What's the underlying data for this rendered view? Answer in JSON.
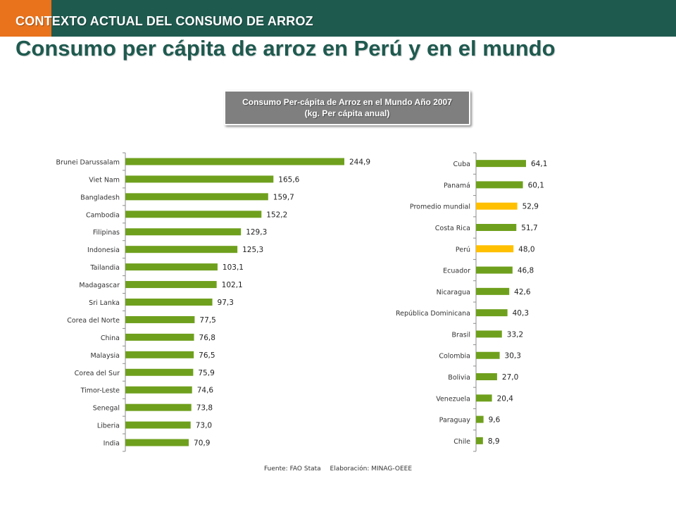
{
  "header": {
    "section_title": "CONTEXTO ACTUAL DEL CONSUMO DE ARROZ",
    "main_title": "Consumo per cápita de arroz en Perú y en el mundo"
  },
  "chart_title": {
    "line1": "Consumo Per-cápita de Arroz en el Mundo Año 2007",
    "line2": "(kg. Per cápita anual)"
  },
  "footer": {
    "source": "Fuente: FAO Stata",
    "elaboration": "Elaboración: MINAG-OEEE"
  },
  "colors": {
    "bar_default": "#6fa01d",
    "bar_highlight": "#ffc000",
    "header_bg": "#1f5a4f",
    "header_accent": "#e8731c"
  },
  "chart_data": [
    {
      "type": "bar",
      "orientation": "horizontal",
      "categories": [
        "Brunei Darussalam",
        "Viet Nam",
        "Bangladesh",
        "Cambodia",
        "Filipinas",
        "Indonesia",
        "Tailandia",
        "Madagascar",
        "Sri Lanka",
        "Corea del Norte",
        "China",
        "Malaysia",
        "Corea del Sur",
        "Timor-Leste",
        "Senegal",
        "Liberia",
        "India"
      ],
      "values": [
        244.9,
        165.6,
        159.7,
        152.2,
        129.3,
        125.3,
        103.1,
        102.1,
        97.3,
        77.5,
        76.8,
        76.5,
        75.9,
        74.6,
        73.8,
        73.0,
        70.9
      ],
      "labels": [
        "244,9",
        "165,6",
        "159,7",
        "152,2",
        "129,3",
        "125,3",
        "103,1",
        "102,1",
        "97,3",
        "77,5",
        "76,8",
        "76,5",
        "75,9",
        "74,6",
        "73,8",
        "73,0",
        "70,9"
      ],
      "highlight": []
    },
    {
      "type": "bar",
      "orientation": "horizontal",
      "categories": [
        "Cuba",
        "Panamá",
        "Promedio mundial",
        "Costa Rica",
        "Perú",
        "Ecuador",
        "Nicaragua",
        "República Dominicana",
        "Brasil",
        "Colombia",
        "Bolivia",
        "Venezuela",
        "Paraguay",
        "Chile"
      ],
      "values": [
        64.1,
        60.1,
        52.9,
        51.7,
        48.0,
        46.8,
        42.6,
        40.3,
        33.2,
        30.3,
        27.0,
        20.4,
        9.6,
        8.9
      ],
      "labels": [
        "64,1",
        "60,1",
        "52,9",
        "51,7",
        "48,0",
        "46,8",
        "42,6",
        "40,3",
        "33,2",
        "30,3",
        "27,0",
        "20,4",
        "9,6",
        "8,9"
      ],
      "highlight": [
        "Promedio mundial",
        "Perú"
      ]
    }
  ]
}
